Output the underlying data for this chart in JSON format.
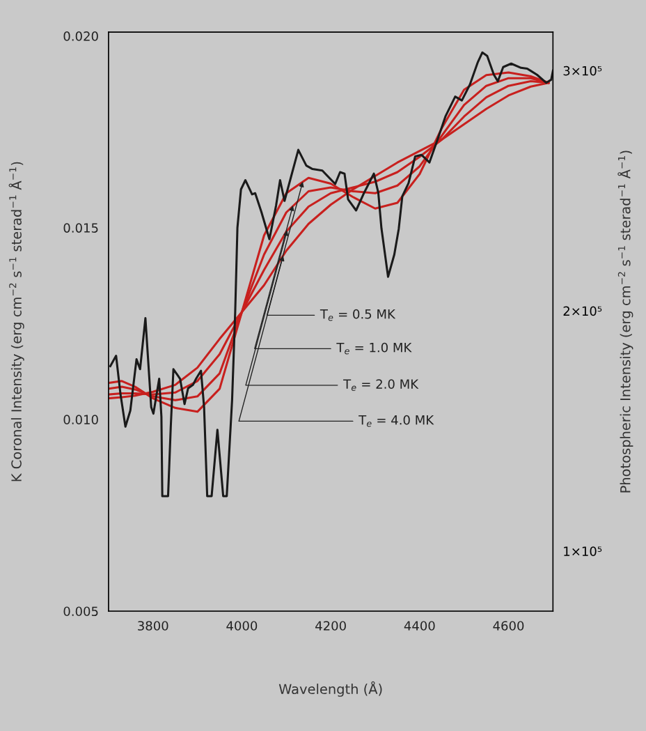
{
  "chart_data": {
    "type": "line",
    "xlabel": "Wavelength (Å)",
    "ylabel": "K Coronal Intensity (erg cm$^{−2}$ s$^{−1}$ sterad$^{−1}$ Å$^{−1}$)",
    "y2label": "Photospheric Intensity (erg cm$^{−2}$ s$^{−1}$ sterad$^{−1}$ Å$^{−1}$)",
    "xlim": [
      3700,
      4700
    ],
    "xticks": [
      3800,
      4000,
      4200,
      4400,
      4600
    ],
    "ylim": [
      0.005,
      0.0201
    ],
    "yticks": [
      {
        "value": 0.005,
        "label": "0.005"
      },
      {
        "value": 0.01,
        "label": "0.010"
      },
      {
        "value": 0.015,
        "label": "0.015"
      },
      {
        "value": 0.02,
        "label": "0.020"
      }
    ],
    "y2lim": [
      75000,
      316000
    ],
    "y2ticks": [
      {
        "value": 100000,
        "label": "1×10⁵"
      },
      {
        "value": 200000,
        "label": "2×10⁵"
      },
      {
        "value": 300000,
        "label": "3×10⁵"
      }
    ],
    "grid": false,
    "marker": "none",
    "line_style": "solid",
    "series": [
      {
        "color": "#c8201e",
        "x": [
          3700,
          3730,
          3760,
          3800,
          3850,
          3900,
          3950,
          4000,
          4050,
          4100,
          4150,
          4200,
          4250,
          4300,
          4350,
          4400,
          4450,
          4500,
          4550,
          4600,
          4650,
          4690
        ],
        "values": [
          0.01095,
          0.011,
          0.01085,
          0.01055,
          0.0103,
          0.0102,
          0.0108,
          0.0128,
          0.0148,
          0.0159,
          0.0163,
          0.01615,
          0.0158,
          0.0155,
          0.01565,
          0.0164,
          0.0176,
          0.0186,
          0.01898,
          0.01905,
          0.01895,
          0.01878
        ]
      },
      {
        "color": "#c8201e",
        "x": [
          3700,
          3730,
          3760,
          3800,
          3850,
          3900,
          3950,
          4000,
          4050,
          4100,
          4150,
          4200,
          4250,
          4300,
          4350,
          4400,
          4450,
          4500,
          4550,
          4600,
          4650,
          4690
        ],
        "values": [
          0.0108,
          0.01085,
          0.01078,
          0.0106,
          0.0105,
          0.0106,
          0.0112,
          0.0128,
          0.0143,
          0.0154,
          0.01595,
          0.01605,
          0.01595,
          0.0159,
          0.0161,
          0.0166,
          0.0174,
          0.0182,
          0.0187,
          0.0189,
          0.0189,
          0.01878
        ]
      },
      {
        "color": "#c8201e",
        "x": [
          3700,
          3730,
          3760,
          3800,
          3850,
          3900,
          3950,
          4000,
          4050,
          4100,
          4150,
          4200,
          4250,
          4300,
          4350,
          4400,
          4450,
          4500,
          4550,
          4600,
          4650,
          4690
        ],
        "values": [
          0.01065,
          0.01068,
          0.01068,
          0.01065,
          0.0107,
          0.011,
          0.0117,
          0.0128,
          0.0139,
          0.0149,
          0.01555,
          0.0159,
          0.01605,
          0.0162,
          0.01645,
          0.01685,
          0.0173,
          0.0179,
          0.0184,
          0.0187,
          0.01882,
          0.01878
        ]
      },
      {
        "color": "#c8201e",
        "x": [
          3700,
          3730,
          3760,
          3800,
          3850,
          3900,
          3950,
          4000,
          4050,
          4100,
          4150,
          4200,
          4250,
          4300,
          4350,
          4400,
          4450,
          4500,
          4550,
          4600,
          4650,
          4690
        ],
        "values": [
          0.01055,
          0.01058,
          0.01062,
          0.01072,
          0.0109,
          0.01135,
          0.0121,
          0.0128,
          0.0135,
          0.0144,
          0.0151,
          0.0156,
          0.016,
          0.01635,
          0.0167,
          0.017,
          0.0173,
          0.0177,
          0.0181,
          0.01845,
          0.01868,
          0.01878
        ]
      },
      {
        "color": "#1a1a1a",
        "x": [
          3704,
          3717,
          3727,
          3738,
          3749,
          3763,
          3771,
          3783,
          3796,
          3801,
          3814,
          3819,
          3821,
          3834,
          3840,
          3846,
          3861,
          3871,
          3879,
          3890,
          3897,
          3908,
          3915,
          3922,
          3932,
          3945,
          3958,
          3966,
          3978,
          3985,
          3990,
          3998,
          4008,
          4023,
          4030,
          4044,
          4062,
          4077,
          4086,
          4096,
          4110,
          4127,
          4145,
          4159,
          4181,
          4210,
          4221,
          4231,
          4239,
          4257,
          4275,
          4297,
          4307,
          4314,
          4329,
          4343,
          4353,
          4361,
          4375,
          4390,
          4404,
          4422,
          4441,
          4458,
          4480,
          4495,
          4513,
          4531,
          4541,
          4552,
          4567,
          4576,
          4588,
          4606,
          4628,
          4642,
          4664,
          4685,
          4696,
          4700
        ],
        "values": [
          0.01139,
          0.01166,
          0.01065,
          0.00981,
          0.01023,
          0.01157,
          0.01131,
          0.01264,
          0.01032,
          0.01015,
          0.01106,
          0.01007,
          0.008,
          0.008,
          0.0098,
          0.01131,
          0.01106,
          0.0104,
          0.01081,
          0.0109,
          0.01106,
          0.01127,
          0.01032,
          0.008,
          0.008,
          0.00973,
          0.008,
          0.008,
          0.0105,
          0.0128,
          0.015,
          0.016,
          0.01624,
          0.01587,
          0.0159,
          0.01541,
          0.0147,
          0.01558,
          0.01624,
          0.0157,
          0.0163,
          0.01703,
          0.01662,
          0.01653,
          0.01649,
          0.01614,
          0.01645,
          0.01641,
          0.01574,
          0.01545,
          0.01591,
          0.01641,
          0.01591,
          0.01499,
          0.01372,
          0.0143,
          0.01497,
          0.01582,
          0.01616,
          0.01686,
          0.0169,
          0.0167,
          0.01732,
          0.0179,
          0.01842,
          0.01832,
          0.01873,
          0.01932,
          0.01957,
          0.01948,
          0.01899,
          0.01882,
          0.01919,
          0.01928,
          0.01917,
          0.01915,
          0.01899,
          0.01878,
          0.01886,
          0.0191
        ]
      }
    ],
    "annotations": [
      {
        "text": "T$_{e}$ = 0.5 MK",
        "x": 4137,
        "y": 0.0162
      },
      {
        "text": "T$_{e}$ = 1.0 MK",
        "x": 4115,
        "y": 0.01558
      },
      {
        "text": "T$_{e}$ = 2.0 MK",
        "x": 4102,
        "y": 0.01493
      },
      {
        "text": "T$_{e}$ = 4.0 MK",
        "x": 4093,
        "y": 0.01427
      }
    ]
  }
}
